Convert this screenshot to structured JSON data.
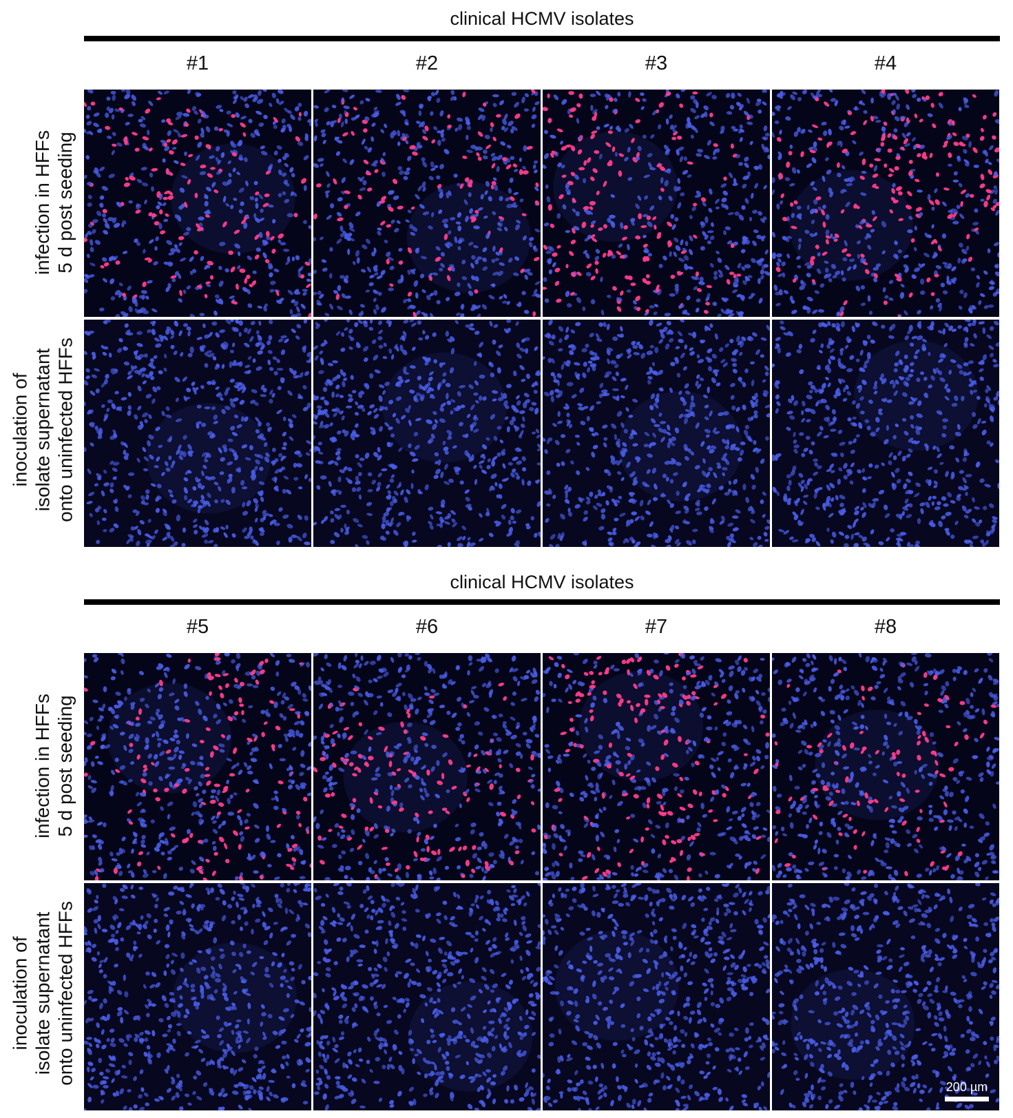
{
  "blocks": [
    {
      "title": "clinical HCMV isolates",
      "isolates": [
        "#1",
        "#2",
        "#3",
        "#4"
      ],
      "rows": [
        {
          "label_line1": "infection in HFFs",
          "label_line2": "5 d post seeding"
        },
        {
          "label_line1": "inoculation of",
          "label_line2": "isolate supernatant",
          "label_line3": "onto uninfected HFFs"
        }
      ]
    },
    {
      "title": "clinical HCMV isolates",
      "isolates": [
        "#5",
        "#6",
        "#7",
        "#8"
      ],
      "rows": [
        {
          "label_line1": "infection in HFFs",
          "label_line2": "5 d post seeding"
        },
        {
          "label_line1": "inoculation of",
          "label_line2": "isolate supernatant",
          "label_line3": "onto uninfected HFFs"
        }
      ]
    }
  ],
  "scale_bar": {
    "label": "200 µm"
  },
  "colors": {
    "nuclei": "#4a5ee8",
    "infected": "#ff3d8c",
    "background": "#000000"
  },
  "image_description_content": {
    "infected_density": [
      0.28,
      0.22,
      0.38,
      0.4,
      0.3,
      0.26,
      0.36,
      0.28
    ]
  }
}
